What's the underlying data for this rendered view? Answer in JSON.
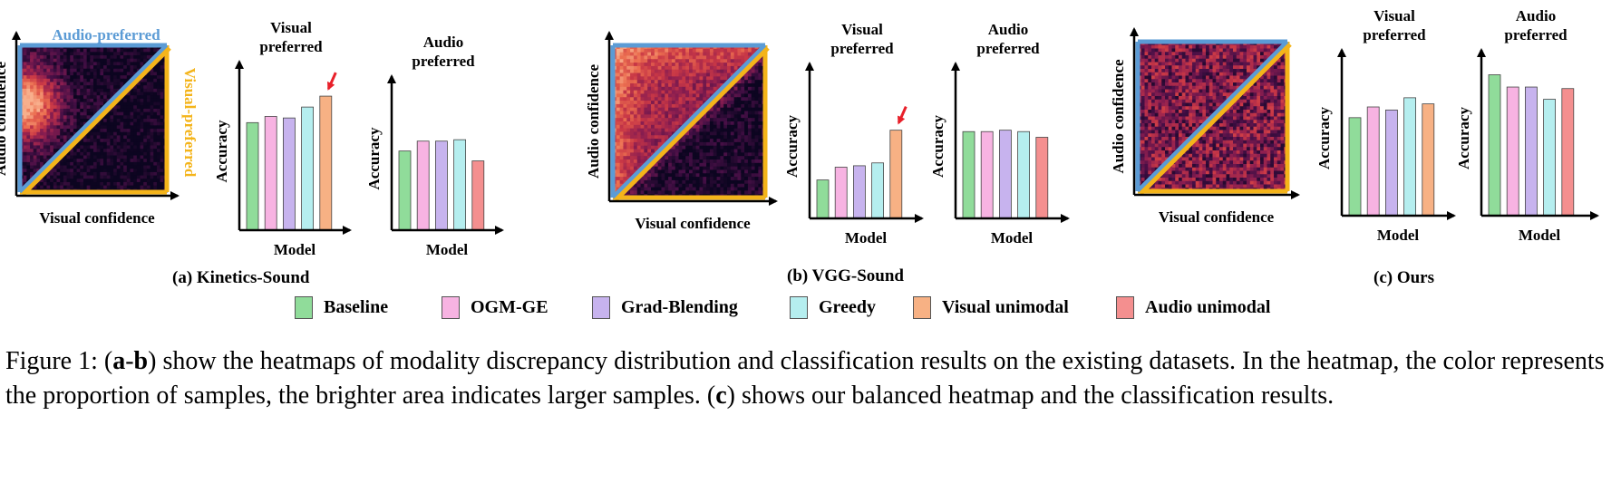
{
  "colors": {
    "audio_preferred": "#5b9bd5",
    "visual_preferred": "#f4b41a",
    "annotation_arrow": "#e8202a",
    "heatmap_dark": "#0c0520",
    "heatmap_bright": "#f5b38c"
  },
  "legend": [
    {
      "label": "Baseline",
      "color": "#90dc9a"
    },
    {
      "label": "OGM-GE",
      "color": "#f7b3e2"
    },
    {
      "label": "Grad-Blending",
      "color": "#c7b3ee"
    },
    {
      "label": "Greedy",
      "color": "#b5eeef"
    },
    {
      "label": "Visual unimodal",
      "color": "#f7b184"
    },
    {
      "label": "Audio unimodal",
      "color": "#f48f8f"
    }
  ],
  "panels": [
    {
      "sub_caption": "(a) Kinetics-Sound",
      "heatmap": {
        "top_label": "Audio-preferred",
        "side_label": "Visual-preferred",
        "x_label": "Visual confidence",
        "y_label": "Audio confidence",
        "distribution": "kinetics"
      }
    },
    {
      "sub_caption": "(b) VGG-Sound",
      "heatmap": {
        "top_label": "",
        "side_label": "",
        "x_label": "Visual confidence",
        "y_label": "Audio confidence",
        "distribution": "vgg"
      }
    },
    {
      "sub_caption": "(c) Ours",
      "heatmap": {
        "top_label": "",
        "side_label": "",
        "x_label": "Visual confidence",
        "y_label": "Audio confidence",
        "distribution": "ours"
      }
    }
  ],
  "chart_data": [
    {
      "type": "bar",
      "panel": "(a) Kinetics-Sound",
      "title": "Visual preferred",
      "xlabel": "Model",
      "ylabel": "Accuracy",
      "categories": [
        "Baseline",
        "OGM-GE",
        "Grad-Blending",
        "Greedy",
        "Visual unimodal"
      ],
      "values": [
        0.69,
        0.73,
        0.72,
        0.79,
        0.86
      ],
      "ylim": [
        0,
        1
      ],
      "annotation": "arrow on Visual unimodal"
    },
    {
      "type": "bar",
      "panel": "(a) Kinetics-Sound",
      "title": "Audio preferred",
      "xlabel": "Model",
      "ylabel": "Accuracy",
      "categories": [
        "Baseline",
        "OGM-GE",
        "Grad-Blending",
        "Greedy",
        "Audio unimodal"
      ],
      "values": [
        0.56,
        0.63,
        0.63,
        0.64,
        0.49
      ],
      "ylim": [
        0,
        1
      ]
    },
    {
      "type": "bar",
      "panel": "(b) VGG-Sound",
      "title": "Visual preferred",
      "xlabel": "Model",
      "ylabel": "Accuracy",
      "categories": [
        "Baseline",
        "OGM-GE",
        "Grad-Blending",
        "Greedy",
        "Visual unimodal"
      ],
      "values": [
        0.27,
        0.36,
        0.37,
        0.39,
        0.62
      ],
      "ylim": [
        0,
        1
      ],
      "annotation": "arrow on Visual unimodal"
    },
    {
      "type": "bar",
      "panel": "(b) VGG-Sound",
      "title": "Audio preferred",
      "xlabel": "Model",
      "ylabel": "Accuracy",
      "categories": [
        "Baseline",
        "OGM-GE",
        "Grad-Blending",
        "Greedy",
        "Audio unimodal"
      ],
      "values": [
        0.61,
        0.61,
        0.62,
        0.61,
        0.57
      ],
      "ylim": [
        0,
        1
      ]
    },
    {
      "type": "bar",
      "panel": "(c) Ours",
      "title": "Visual preferred",
      "xlabel": "Model",
      "ylabel": "Accuracy",
      "categories": [
        "Baseline",
        "OGM-GE",
        "Grad-Blending",
        "Greedy",
        "Visual unimodal"
      ],
      "values": [
        0.64,
        0.71,
        0.69,
        0.77,
        0.73
      ],
      "ylim": [
        0,
        1
      ]
    },
    {
      "type": "bar",
      "panel": "(c) Ours",
      "title": "Audio preferred",
      "xlabel": "Model",
      "ylabel": "Accuracy",
      "categories": [
        "Baseline",
        "OGM-GE",
        "Grad-Blending",
        "Greedy",
        "Audio unimodal"
      ],
      "values": [
        0.92,
        0.84,
        0.84,
        0.76,
        0.83
      ],
      "ylim": [
        0,
        1
      ]
    }
  ],
  "caption": {
    "label": "Figure 1: (",
    "bold1": "a",
    "dash": "-",
    "bold2": "b",
    "text1": ") show the heatmaps of modality discrepancy distribution and classification results on the existing datasets. In the heatmap, the color represents the proportion of samples, the brighter area indicates larger samples. (",
    "bold3": "c",
    "text2": ") shows our balanced heatmap and the classification results."
  }
}
